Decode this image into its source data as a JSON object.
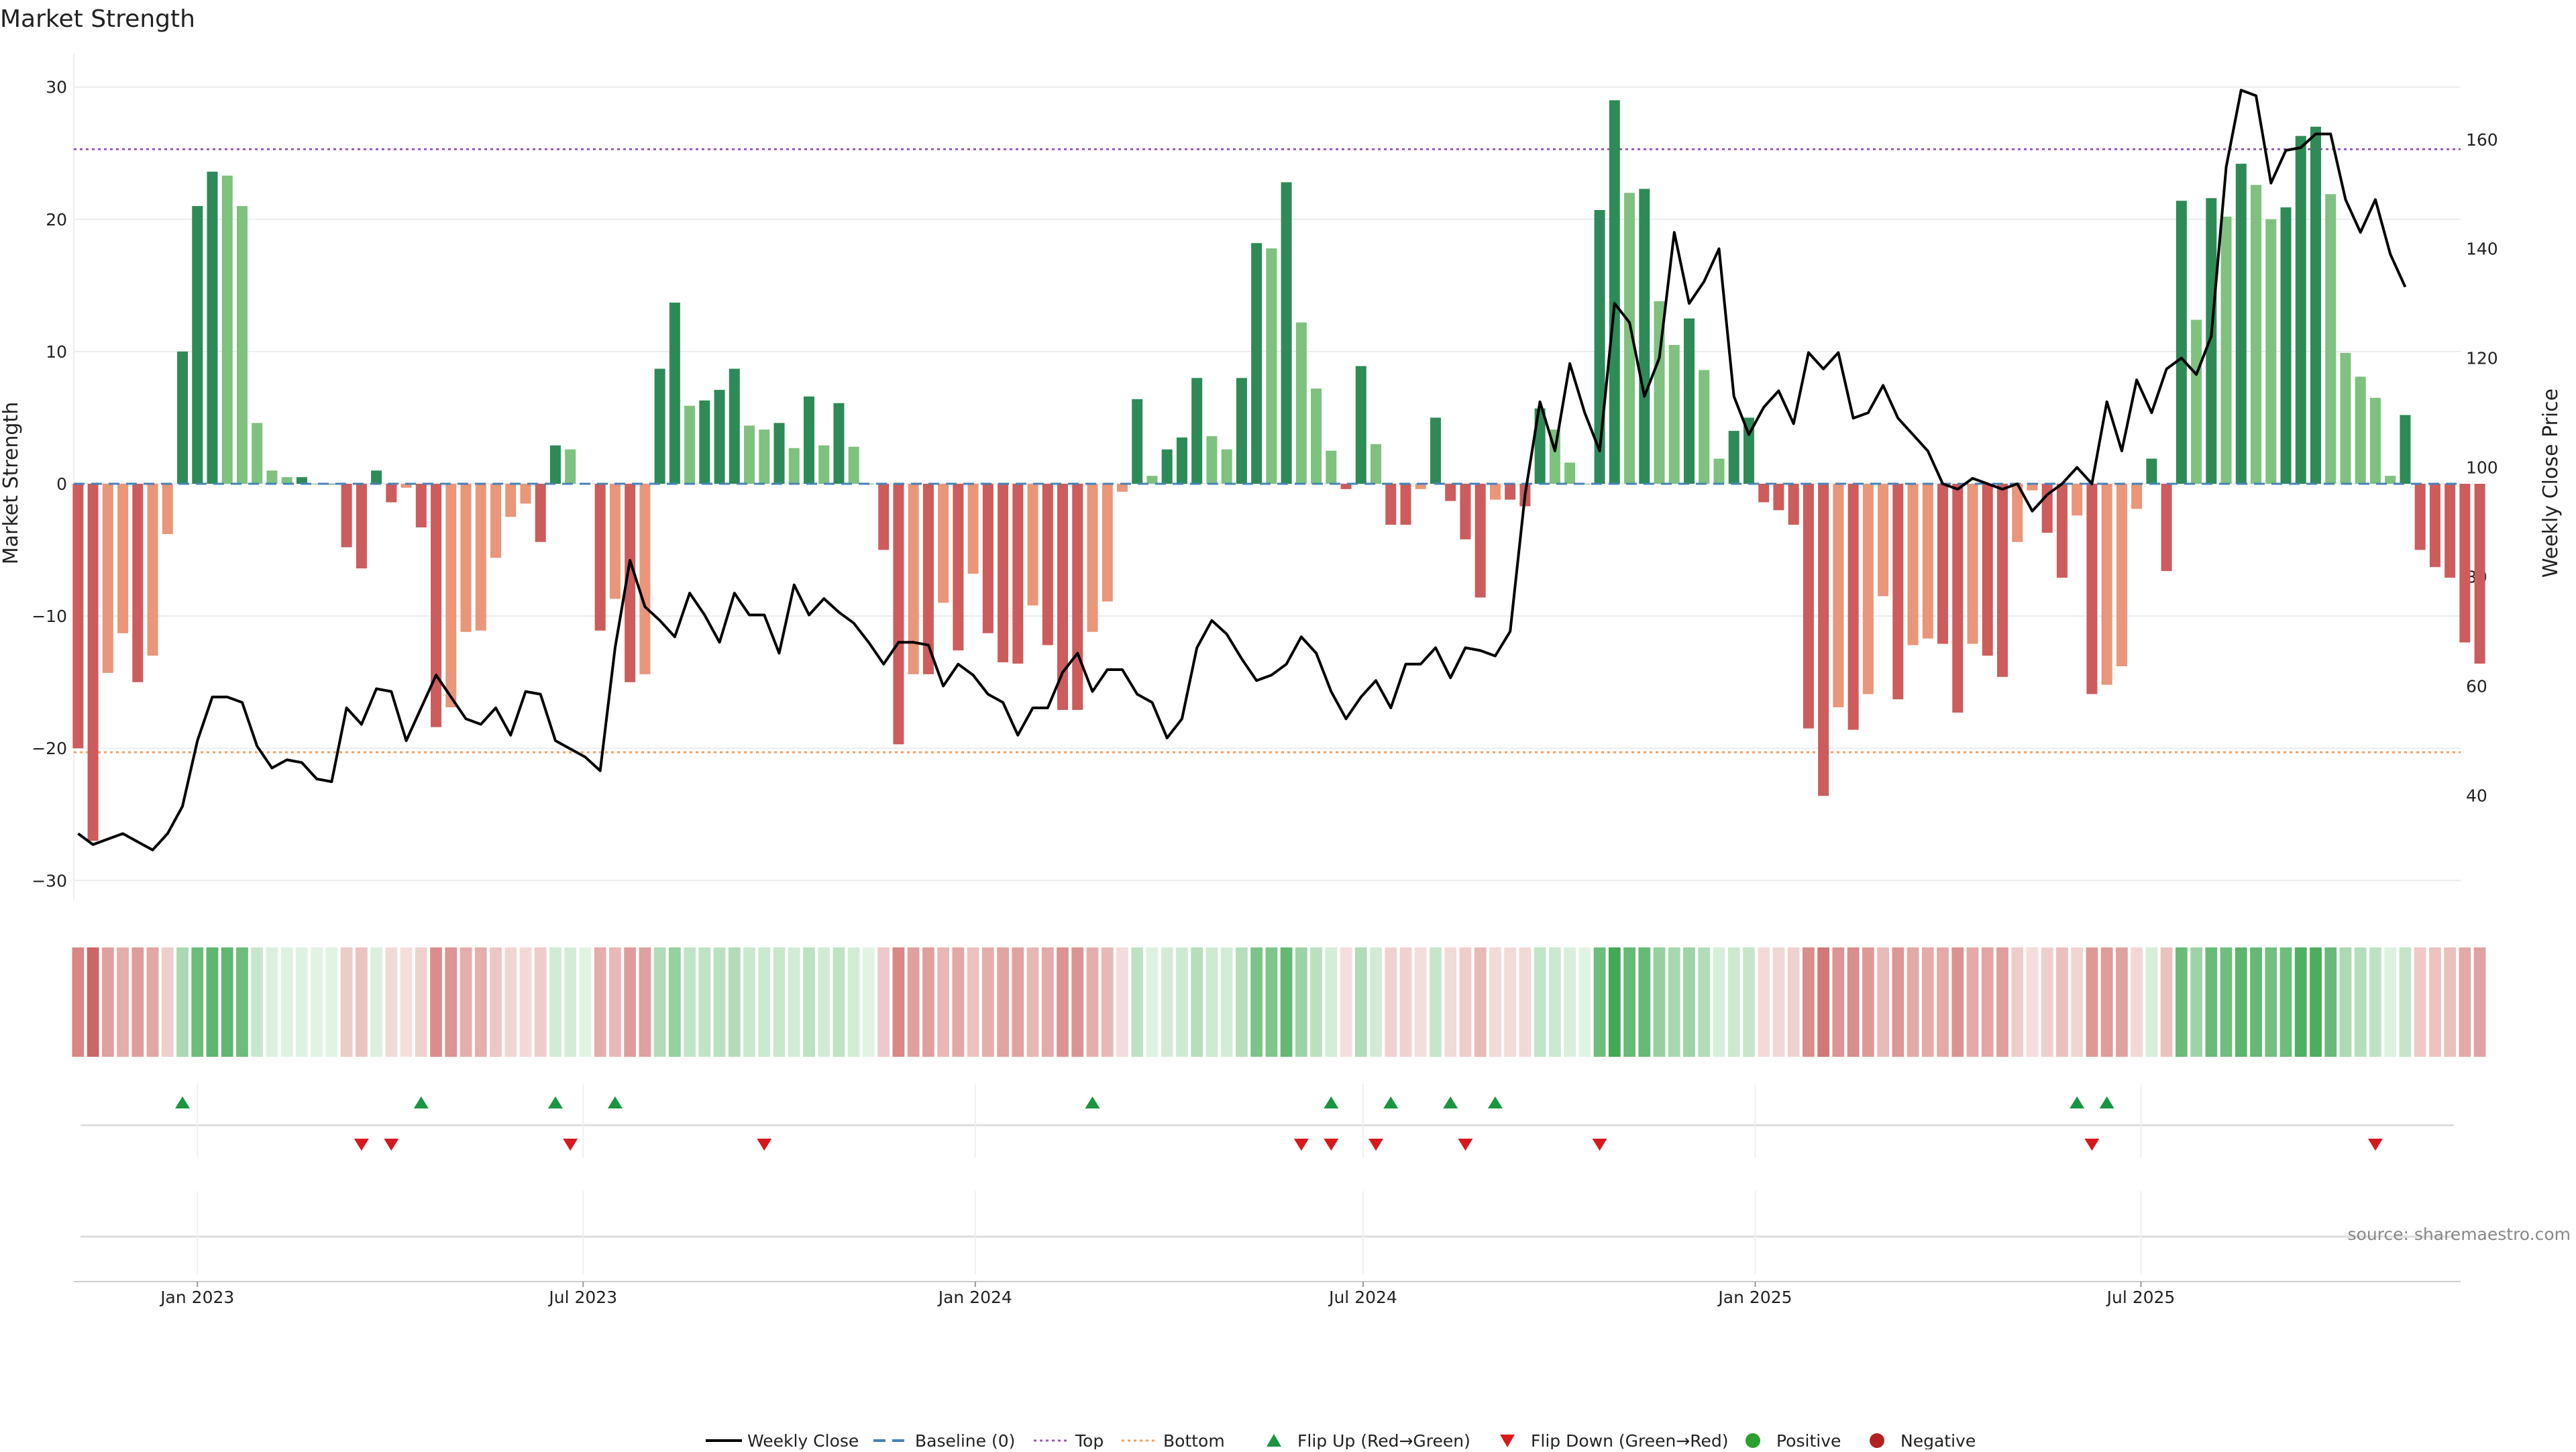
{
  "title": "Market Strength",
  "source": "source: sharemaestro.com",
  "colors": {
    "green_dark": "#2e8b57",
    "green_light": "#7fc17f",
    "red_dark": "#cd5c5c",
    "red_light": "#e9967a",
    "price_line": "#000000",
    "baseline": "#4682b4",
    "top": "#9b59b6",
    "bottom": "#f0a060",
    "flip_up": "#1a9641",
    "flip_down": "#d7191c",
    "positive": "#2ca02c",
    "negative": "#b22222"
  },
  "chart_data": {
    "type": "bar",
    "x_start": "2022-11-06",
    "x_step_days": 7,
    "xlim": [
      "2022-11-04",
      "2025-11-28"
    ],
    "y_left": {
      "label": "Market Strength",
      "lim": [
        -31,
        31
      ],
      "ticks": [
        -30,
        -20,
        -10,
        0,
        10,
        20,
        30
      ]
    },
    "y_right": {
      "label": "Weekly Close Price",
      "lim": [
        22,
        172
      ],
      "ticks": [
        40,
        60,
        80,
        100,
        120,
        140,
        160
      ]
    },
    "x_ticks": [
      {
        "date": "2023-01-01",
        "label": "Jan 2023"
      },
      {
        "date": "2023-07-01",
        "label": "Jul 2023"
      },
      {
        "date": "2024-01-01",
        "label": "Jan 2024"
      },
      {
        "date": "2024-07-01",
        "label": "Jul 2024"
      },
      {
        "date": "2025-01-01",
        "label": "Jan 2025"
      },
      {
        "date": "2025-07-01",
        "label": "Jul 2025"
      }
    ],
    "top_line": 25.3,
    "bottom_line": -20.3,
    "strength": [
      -20,
      -27,
      -14.3,
      -11.3,
      -15,
      -13,
      -3.8,
      10,
      21,
      23.6,
      23.3,
      21,
      4.6,
      1,
      0.5,
      0.5,
      0,
      0,
      -4.8,
      -6.4,
      1,
      -1.4,
      -0.3,
      -3.3,
      -18.4,
      -16.9,
      -11.2,
      -11.1,
      -5.6,
      -2.5,
      -1.5,
      -4.4,
      2.9,
      2.6,
      0,
      -11.1,
      -8.7,
      -15,
      -14.4,
      8.7,
      13.7,
      5.9,
      6.3,
      7.1,
      8.7,
      4.4,
      4.1,
      4.6,
      2.7,
      6.6,
      2.9,
      6.1,
      2.8,
      0,
      -5,
      -19.7,
      -14.4,
      -14.4,
      -9,
      -12.6,
      -6.8,
      -11.3,
      -13.5,
      -13.6,
      -9.2,
      -12.2,
      -17.1,
      -17.1,
      -11.2,
      -8.9,
      -0.6,
      6.4,
      0.6,
      2.6,
      3.5,
      8,
      3.6,
      2.6,
      8,
      18.2,
      17.8,
      22.8,
      12.2,
      7.2,
      2.5,
      -0.4,
      8.9,
      3,
      -3.1,
      -3.1,
      -0.4,
      5,
      -1.3,
      -4.2,
      -8.6,
      -1.2,
      -1.2,
      -1.7,
      5.7,
      4.1,
      1.6,
      0,
      20.7,
      29,
      22,
      22.3,
      13.8,
      10.5,
      12.5,
      8.6,
      1.9,
      4,
      5,
      -1.4,
      -2,
      -3.1,
      -18.5,
      -23.6,
      -16.9,
      -18.6,
      -15.9,
      -8.5,
      -16.3,
      -12.2,
      -11.7,
      -12.1,
      -17.3,
      -12.1,
      -13,
      -14.6,
      -4.4,
      -0.5,
      -3.7,
      -7.1,
      -2.4,
      -15.9,
      -15.2,
      -13.8,
      -1.9,
      1.9,
      -6.6,
      21.4,
      12.4,
      21.6,
      20.2,
      24.2,
      22.6,
      20,
      20.9,
      26.3,
      27,
      21.9,
      9.9,
      8.1,
      6.5,
      0.6,
      5.2,
      -5,
      -6.3,
      -7.1,
      -12,
      -13.6
    ],
    "close": [
      33,
      31,
      32,
      33,
      31.5,
      30,
      33,
      38,
      50,
      58,
      58,
      57,
      49,
      45,
      46.5,
      46,
      43,
      42.5,
      56,
      53,
      59.5,
      59,
      50,
      56,
      62,
      58,
      54,
      53,
      56,
      51,
      59,
      58.5,
      50,
      48.5,
      47,
      44.5,
      67,
      83,
      74.5,
      72,
      69,
      77,
      73,
      68,
      77,
      73,
      73,
      66,
      78.5,
      73,
      76,
      73.5,
      71.5,
      68,
      64,
      68,
      68,
      67.5,
      60,
      64,
      62,
      58.5,
      57,
      51,
      56,
      56,
      62.5,
      66,
      59,
      63,
      63,
      58.5,
      57,
      50.5,
      54,
      67,
      72,
      69.5,
      65,
      61,
      62,
      64,
      69,
      66,
      59,
      54,
      58,
      61,
      56,
      64,
      64,
      67,
      61.5,
      67,
      66.5,
      65.5,
      70,
      95,
      112,
      103,
      119,
      110,
      103,
      130,
      126.5,
      113,
      120,
      143,
      130,
      134,
      140,
      113,
      106,
      111,
      114,
      108,
      121,
      118,
      121,
      109,
      110,
      115,
      109,
      106,
      103,
      97,
      96,
      98,
      97,
      96,
      97,
      92,
      95,
      97,
      100,
      97,
      112,
      103,
      116,
      110,
      118,
      120,
      117,
      124,
      155,
      169,
      168,
      152,
      158,
      158.5,
      161,
      161,
      149,
      143,
      149,
      139,
      133
    ],
    "heat_scale": {
      "min": -30,
      "max": 30
    },
    "flip_up": [
      "2022-12-25",
      "2023-04-16",
      "2023-06-18",
      "2023-07-16",
      "2024-02-25",
      "2024-06-16",
      "2024-07-14",
      "2024-08-11",
      "2024-09-01",
      "2025-06-01",
      "2025-06-15"
    ],
    "flip_down": [
      "2023-03-19",
      "2023-04-02",
      "2023-06-25",
      "2023-09-24",
      "2024-06-02",
      "2024-06-16",
      "2024-07-07",
      "2024-08-18",
      "2024-10-20",
      "2025-06-08",
      "2025-10-19"
    ],
    "legend": [
      {
        "key": "line_black",
        "label": "Weekly Close"
      },
      {
        "key": "dash_blue",
        "label": "Baseline (0)"
      },
      {
        "key": "dot_purple",
        "label": "Top"
      },
      {
        "key": "dot_orange",
        "label": "Bottom"
      },
      {
        "key": "tri_up",
        "label": "Flip Up (Red→Green)"
      },
      {
        "key": "tri_down",
        "label": "Flip Down (Green→Red)"
      },
      {
        "key": "dot_green",
        "label": "Positive"
      },
      {
        "key": "dot_red",
        "label": "Negative"
      }
    ]
  }
}
